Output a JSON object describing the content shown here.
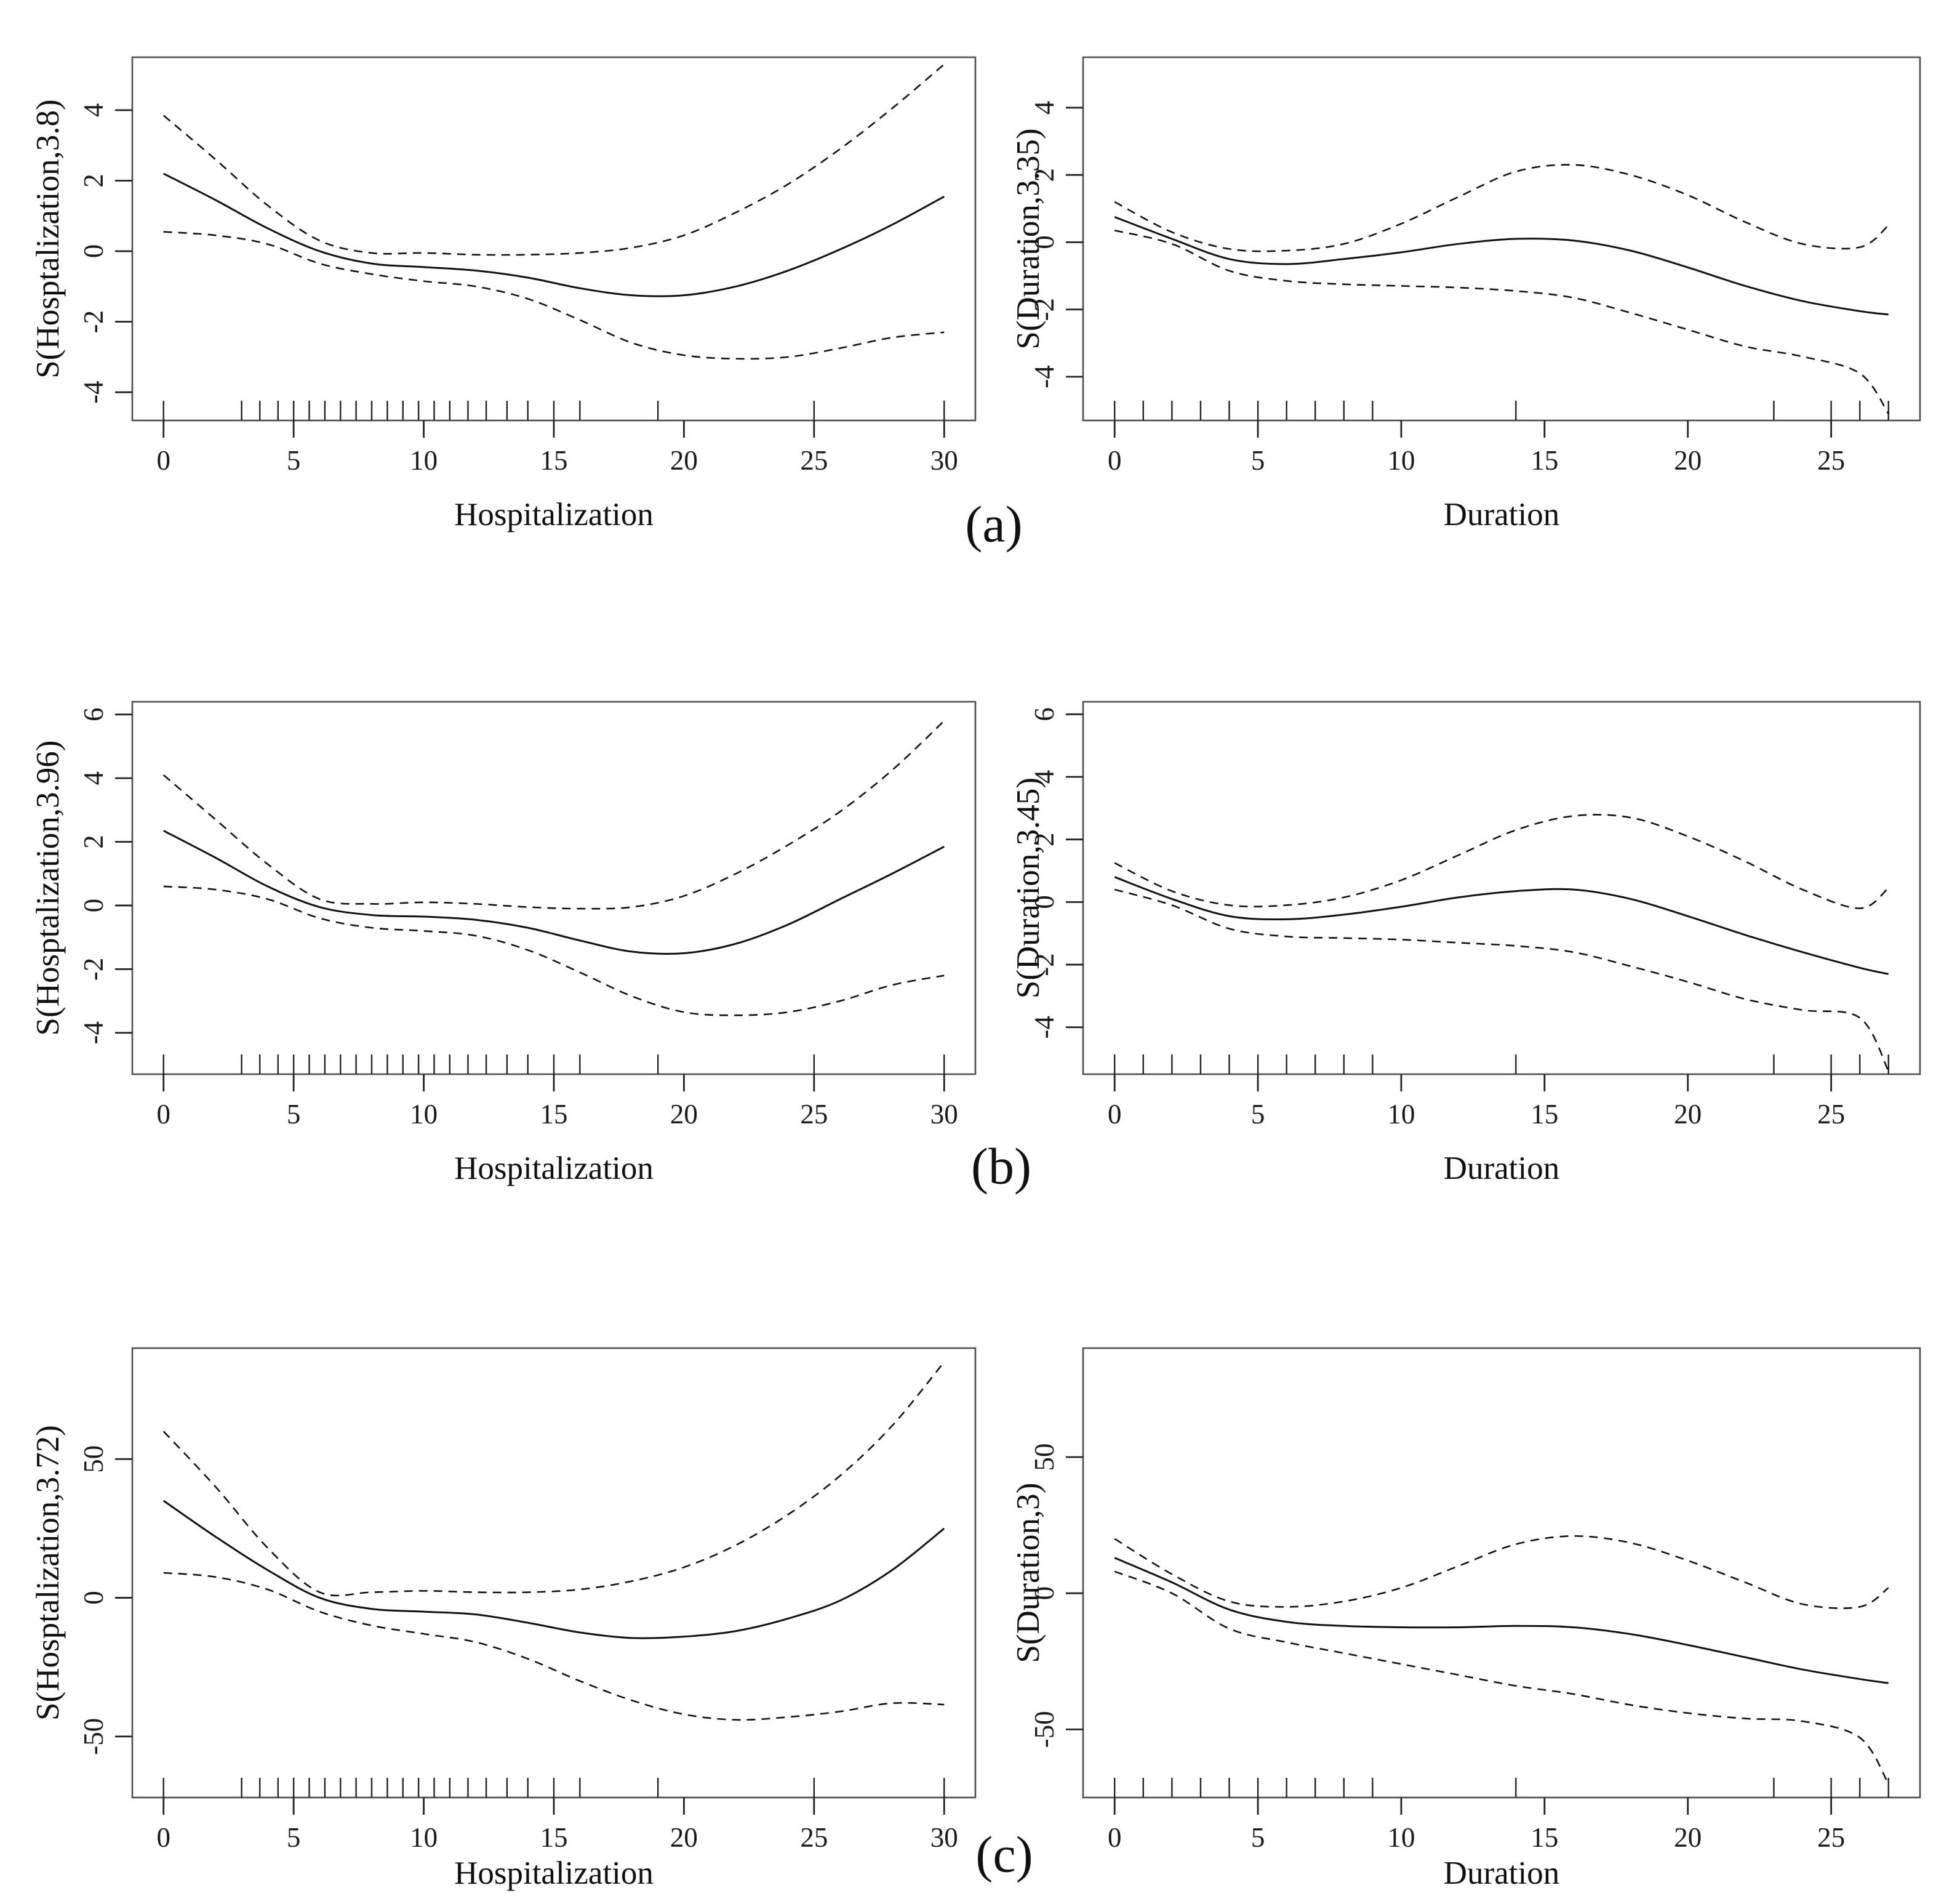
{
  "figure": {
    "row_labels": [
      "(a)",
      "(b)",
      "(c)"
    ],
    "line_color": "#111111",
    "box_color": "#4d4d4d",
    "background": "#ffffff"
  },
  "chart_data": [
    {
      "id": "a-left",
      "type": "line",
      "title": "",
      "xlabel": "Hospitalization",
      "ylabel": "S(Hosptalization,3.8)",
      "xlim": [
        -1.2,
        31.2
      ],
      "ylim": [
        -4.8,
        5.5
      ],
      "xticks": [
        0,
        5,
        10,
        15,
        20,
        25,
        30
      ],
      "yticks": [
        -4,
        -2,
        0,
        2,
        4
      ],
      "grid": false,
      "legend": "none",
      "x": [
        0,
        2,
        4,
        6,
        8,
        10,
        12,
        14,
        16,
        18,
        20,
        22,
        24,
        26,
        28,
        30
      ],
      "series": [
        {
          "name": "fit",
          "style": "solid",
          "values": [
            2.2,
            1.45,
            0.65,
            0.0,
            -0.35,
            -0.45,
            -0.55,
            -0.75,
            -1.05,
            -1.25,
            -1.25,
            -1.0,
            -0.55,
            0.05,
            0.75,
            1.55
          ]
        },
        {
          "name": "upper-ci",
          "style": "dashed",
          "values": [
            3.85,
            2.6,
            1.3,
            0.3,
            -0.05,
            -0.05,
            -0.1,
            -0.1,
            -0.05,
            0.1,
            0.45,
            1.1,
            1.9,
            2.9,
            4.05,
            5.3
          ]
        },
        {
          "name": "lower-ci",
          "style": "dashed",
          "values": [
            0.55,
            0.45,
            0.2,
            -0.35,
            -0.65,
            -0.85,
            -1.0,
            -1.35,
            -1.95,
            -2.6,
            -2.95,
            -3.05,
            -3.0,
            -2.75,
            -2.45,
            -2.3
          ]
        }
      ],
      "rug_x": [
        0,
        3,
        3.7,
        4.4,
        5,
        5.6,
        6.2,
        6.8,
        7.4,
        8,
        8.6,
        9.2,
        9.8,
        10.4,
        11,
        11.7,
        12.4,
        13.2,
        14,
        15,
        16,
        19,
        25,
        30
      ]
    },
    {
      "id": "a-right",
      "type": "line",
      "title": "",
      "xlabel": "Duration",
      "ylabel": "S(Duration,3.35)",
      "xlim": [
        -1.1,
        28.1
      ],
      "ylim": [
        -5.3,
        5.5
      ],
      "xticks": [
        0,
        5,
        10,
        15,
        20,
        25
      ],
      "yticks": [
        -4,
        -2,
        0,
        2,
        4
      ],
      "grid": false,
      "legend": "none",
      "x": [
        0,
        2,
        4,
        6,
        8,
        10,
        12,
        14,
        16,
        18,
        20,
        22,
        24,
        26,
        27
      ],
      "series": [
        {
          "name": "fit",
          "style": "solid",
          "values": [
            0.75,
            0.1,
            -0.5,
            -0.65,
            -0.5,
            -0.3,
            -0.05,
            0.1,
            0.05,
            -0.25,
            -0.75,
            -1.3,
            -1.75,
            -2.05,
            -2.15
          ]
        },
        {
          "name": "upper-ci",
          "style": "dashed",
          "values": [
            1.2,
            0.3,
            -0.2,
            -0.25,
            -0.05,
            0.55,
            1.35,
            2.1,
            2.3,
            2.0,
            1.4,
            0.6,
            -0.05,
            -0.15,
            0.5
          ]
        },
        {
          "name": "lower-ci",
          "style": "dashed",
          "values": [
            0.35,
            -0.05,
            -0.85,
            -1.15,
            -1.25,
            -1.3,
            -1.35,
            -1.45,
            -1.65,
            -2.1,
            -2.6,
            -3.1,
            -3.4,
            -3.9,
            -5.1
          ]
        }
      ],
      "rug_x": [
        0,
        1,
        2,
        3,
        4,
        5,
        6,
        7,
        8,
        9,
        14,
        23,
        25,
        26,
        27
      ]
    },
    {
      "id": "b-left",
      "type": "line",
      "title": "",
      "xlabel": "Hospitalization",
      "ylabel": "S(Hosptalization,3.96)",
      "xlim": [
        -1.2,
        31.2
      ],
      "ylim": [
        -5.3,
        6.4
      ],
      "xticks": [
        0,
        5,
        10,
        15,
        20,
        25,
        30
      ],
      "yticks": [
        -4,
        -2,
        0,
        2,
        4,
        6
      ],
      "grid": false,
      "legend": "none",
      "x": [
        0,
        2,
        4,
        6,
        8,
        10,
        12,
        14,
        16,
        18,
        20,
        22,
        24,
        26,
        28,
        30
      ],
      "series": [
        {
          "name": "fit",
          "style": "solid",
          "values": [
            2.35,
            1.5,
            0.6,
            -0.05,
            -0.3,
            -0.35,
            -0.45,
            -0.7,
            -1.1,
            -1.45,
            -1.5,
            -1.2,
            -0.6,
            0.2,
            1.0,
            1.85
          ]
        },
        {
          "name": "upper-ci",
          "style": "dashed",
          "values": [
            4.1,
            2.7,
            1.3,
            0.2,
            0.05,
            0.1,
            0.05,
            -0.05,
            -0.1,
            -0.05,
            0.3,
            1.0,
            1.9,
            2.95,
            4.25,
            5.8
          ]
        },
        {
          "name": "lower-ci",
          "style": "dashed",
          "values": [
            0.6,
            0.5,
            0.2,
            -0.4,
            -0.7,
            -0.8,
            -0.95,
            -1.4,
            -2.1,
            -2.85,
            -3.35,
            -3.45,
            -3.35,
            -3.0,
            -2.5,
            -2.2
          ]
        }
      ],
      "rug_x": [
        0,
        3,
        3.7,
        4.4,
        5,
        5.6,
        6.2,
        6.8,
        7.4,
        8,
        8.6,
        9.2,
        9.8,
        10.4,
        11,
        11.7,
        12.4,
        13.2,
        14,
        15,
        16,
        19,
        25,
        30
      ]
    },
    {
      "id": "b-right",
      "type": "line",
      "title": "",
      "xlabel": "Duration",
      "ylabel": "S(Duration,3.45)",
      "xlim": [
        -1.1,
        28.1
      ],
      "ylim": [
        -5.5,
        6.4
      ],
      "xticks": [
        0,
        5,
        10,
        15,
        20,
        25
      ],
      "yticks": [
        -4,
        -2,
        0,
        2,
        4,
        6
      ],
      "grid": false,
      "legend": "none",
      "x": [
        0,
        2,
        4,
        6,
        8,
        10,
        12,
        14,
        16,
        18,
        20,
        22,
        24,
        26,
        27
      ],
      "series": [
        {
          "name": "fit",
          "style": "solid",
          "values": [
            0.8,
            0.1,
            -0.45,
            -0.55,
            -0.4,
            -0.15,
            0.15,
            0.35,
            0.4,
            0.1,
            -0.45,
            -1.05,
            -1.6,
            -2.1,
            -2.3
          ]
        },
        {
          "name": "upper-ci",
          "style": "dashed",
          "values": [
            1.25,
            0.35,
            -0.1,
            -0.1,
            0.15,
            0.7,
            1.5,
            2.3,
            2.75,
            2.7,
            2.1,
            1.3,
            0.4,
            -0.2,
            0.45
          ]
        },
        {
          "name": "lower-ci",
          "style": "dashed",
          "values": [
            0.4,
            -0.1,
            -0.85,
            -1.1,
            -1.15,
            -1.2,
            -1.3,
            -1.4,
            -1.6,
            -2.05,
            -2.55,
            -3.1,
            -3.45,
            -3.7,
            -5.4
          ]
        }
      ],
      "rug_x": [
        0,
        1,
        2,
        3,
        4,
        5,
        6,
        7,
        8,
        9,
        14,
        23,
        25,
        26,
        27
      ]
    },
    {
      "id": "c-left",
      "type": "line",
      "title": "",
      "xlabel": "Hospitalization",
      "ylabel": "S(Hosptalization,3.72)",
      "xlim": [
        -1.2,
        31.2
      ],
      "ylim": [
        -72,
        90
      ],
      "xticks": [
        0,
        5,
        10,
        15,
        20,
        25,
        30
      ],
      "yticks": [
        -50,
        0,
        50
      ],
      "grid": false,
      "legend": "none",
      "x": [
        0,
        2,
        4,
        6,
        8,
        10,
        12,
        14,
        16,
        18,
        20,
        22,
        24,
        26,
        28,
        30
      ],
      "series": [
        {
          "name": "fit",
          "style": "solid",
          "values": [
            35,
            22,
            10,
            0,
            -4,
            -5,
            -6,
            -9,
            -12.5,
            -14.5,
            -14,
            -12,
            -7.5,
            -1,
            10,
            25
          ]
        },
        {
          "name": "upper-ci",
          "style": "dashed",
          "values": [
            60,
            40,
            18,
            2,
            2,
            2.5,
            2,
            2,
            3,
            6,
            11,
            19,
            30,
            44,
            62,
            85
          ]
        },
        {
          "name": "lower-ci",
          "style": "dashed",
          "values": [
            9,
            7.5,
            3,
            -5,
            -10,
            -13,
            -16,
            -22,
            -30,
            -37,
            -42,
            -44,
            -43,
            -41,
            -38,
            -38.5
          ]
        }
      ],
      "rug_x": [
        0,
        3,
        3.7,
        4.4,
        5,
        5.6,
        6.2,
        6.8,
        7.4,
        8,
        8.6,
        9.2,
        9.8,
        10.4,
        11,
        11.7,
        12.4,
        13.2,
        14,
        15,
        16,
        19,
        25,
        30
      ]
    },
    {
      "id": "c-right",
      "type": "line",
      "title": "",
      "xlabel": "Duration",
      "ylabel": "S(Duration,3)",
      "xlim": [
        -1.1,
        28.1
      ],
      "ylim": [
        -75,
        90
      ],
      "xticks": [
        0,
        5,
        10,
        15,
        20,
        25
      ],
      "yticks": [
        -50,
        0,
        50
      ],
      "grid": false,
      "legend": "none",
      "x": [
        0,
        2,
        4,
        6,
        8,
        10,
        12,
        14,
        16,
        18,
        20,
        22,
        24,
        26,
        27
      ],
      "series": [
        {
          "name": "fit",
          "style": "solid",
          "values": [
            13,
            4,
            -6,
            -10.5,
            -12,
            -12.5,
            -12.5,
            -12,
            -12.5,
            -15,
            -19,
            -23.5,
            -28,
            -31.5,
            -33
          ]
        },
        {
          "name": "upper-ci",
          "style": "dashed",
          "values": [
            20,
            7,
            -3,
            -5,
            -3,
            2,
            10,
            18,
            21,
            18.5,
            12,
            4,
            -4,
            -5,
            2
          ]
        },
        {
          "name": "lower-ci",
          "style": "dashed",
          "values": [
            8,
            0,
            -13,
            -18,
            -22,
            -26,
            -30,
            -34,
            -37,
            -41,
            -44,
            -46,
            -47,
            -53,
            -70
          ]
        }
      ],
      "rug_x": [
        0,
        1,
        2,
        3,
        4,
        5,
        6,
        7,
        8,
        9,
        14,
        23,
        25,
        26,
        27
      ]
    }
  ]
}
